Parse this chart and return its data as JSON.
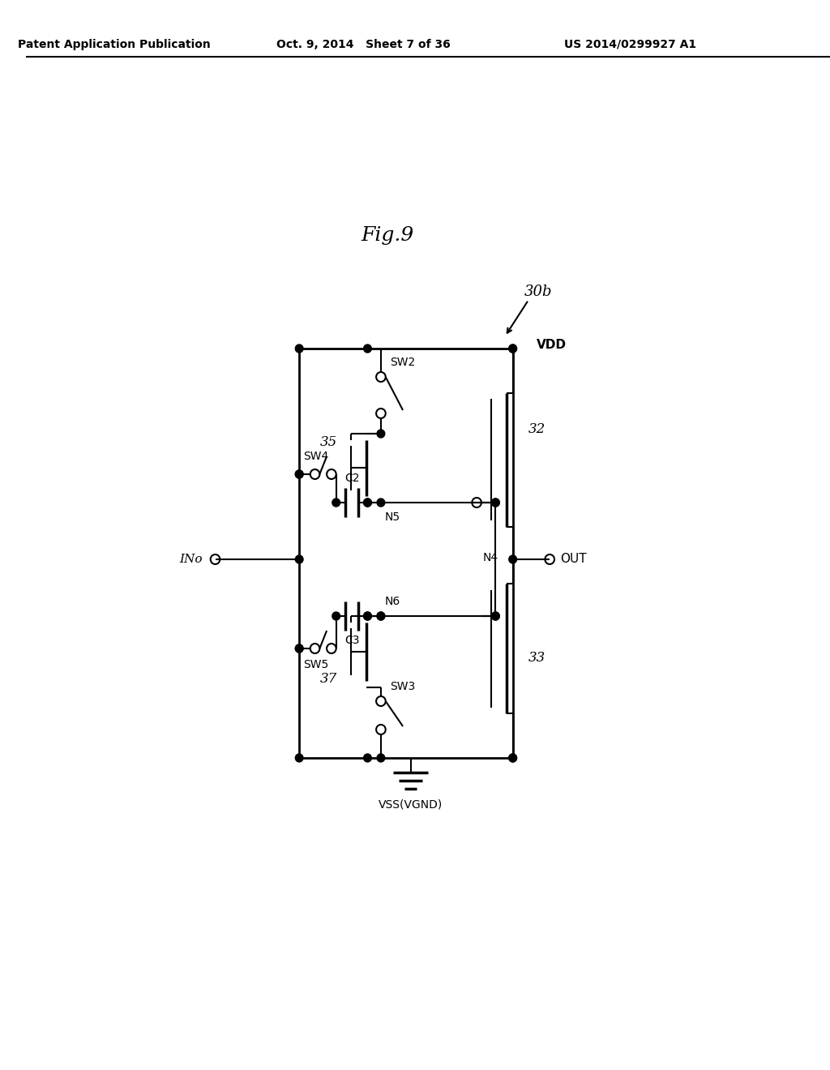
{
  "header_left": "Patent Application Publication",
  "header_mid": "Oct. 9, 2014   Sheet 7 of 36",
  "header_right": "US 2014/0299927 A1",
  "fig_title": "Fig.9",
  "fig_label": "30b",
  "bg_color": "#ffffff"
}
